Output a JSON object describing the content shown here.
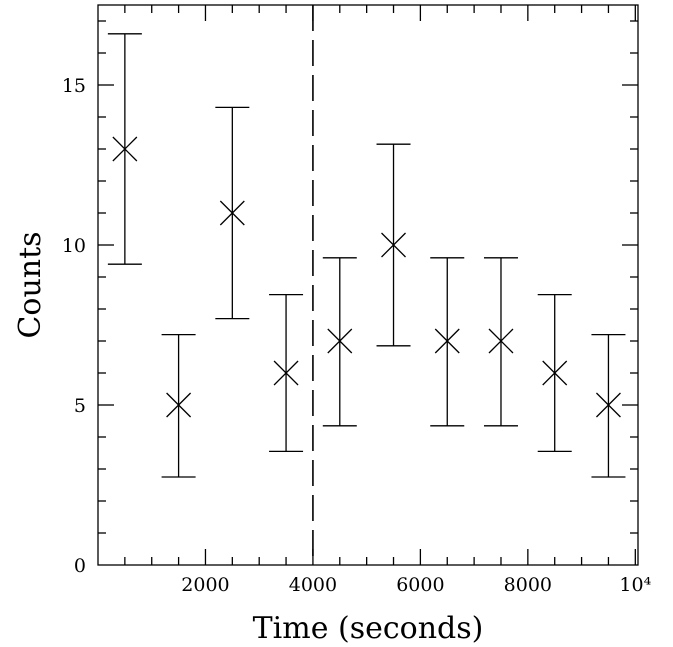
{
  "chart_data": {
    "type": "scatter",
    "xlabel": "Time (seconds)",
    "ylabel": "Counts",
    "xlim": [
      0,
      10050
    ],
    "ylim": [
      0,
      17.5
    ],
    "x_ticks": [
      {
        "value": 2000,
        "label": "2000"
      },
      {
        "value": 4000,
        "label": "4000"
      },
      {
        "value": 6000,
        "label": "6000"
      },
      {
        "value": 8000,
        "label": "8000"
      },
      {
        "value": 10000,
        "label": "10⁴"
      }
    ],
    "y_ticks": [
      {
        "value": 0,
        "label": "0"
      },
      {
        "value": 5,
        "label": "5"
      },
      {
        "value": 10,
        "label": "10"
      },
      {
        "value": 15,
        "label": "15"
      }
    ],
    "vline_x": 4000,
    "points": [
      {
        "x": 500,
        "y": 13,
        "err_low": 9.4,
        "err_high": 16.6
      },
      {
        "x": 1500,
        "y": 5,
        "err_low": 2.75,
        "err_high": 7.2
      },
      {
        "x": 2500,
        "y": 11,
        "err_low": 7.7,
        "err_high": 14.3
      },
      {
        "x": 3500,
        "y": 6,
        "err_low": 3.55,
        "err_high": 8.45
      },
      {
        "x": 4500,
        "y": 7,
        "err_low": 4.35,
        "err_high": 9.6
      },
      {
        "x": 5500,
        "y": 10,
        "err_low": 6.85,
        "err_high": 13.15
      },
      {
        "x": 6500,
        "y": 7,
        "err_low": 4.35,
        "err_high": 9.6
      },
      {
        "x": 7500,
        "y": 7,
        "err_low": 4.35,
        "err_high": 9.6
      },
      {
        "x": 8500,
        "y": 6,
        "err_low": 3.55,
        "err_high": 8.45
      },
      {
        "x": 9500,
        "y": 5,
        "err_low": 2.75,
        "err_high": 7.2
      }
    ]
  }
}
